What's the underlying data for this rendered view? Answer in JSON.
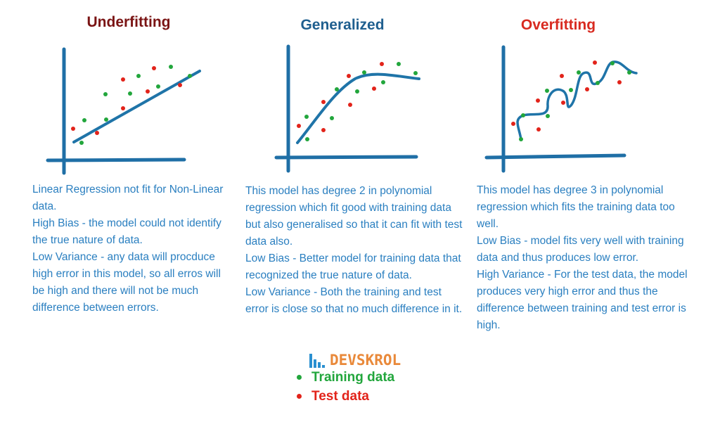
{
  "panels": [
    {
      "title": "Underfitting",
      "paragraphs": [
        "Linear Regression not fit for Non-Linear data.",
        "High Bias - the model could not identify the true nature of data.",
        "Low Variance - any data will procduce high error in this model, so all erros will be high and there will not be much difference between errors."
      ]
    },
    {
      "title": "Generalized",
      "paragraphs": [
        "This model has degree 2 in polynomial regression which fit good with training data but also generalised so that it can fit with test data also.",
        "Low Bias - Better model for training data that recognized the true nature of data.",
        "Low Variance - Both the training and test error is close so that no much difference in it."
      ]
    },
    {
      "title": "Overfitting",
      "paragraphs": [
        "This model has degree 3 in polynomial regression which fits the training data too well.",
        "Low Bias - model fits very well with training data and thus produces low error.",
        "High Variance - For the test data, the model produces very high error and thus the difference between training and test error is high."
      ]
    }
  ],
  "logo": {
    "text": "DEVSKROL"
  },
  "legend": {
    "training": "Training data",
    "test": "Test data"
  },
  "colors": {
    "axis": "#1f6fa6",
    "curve": "#1f74a8",
    "training_point": "#22a63c",
    "test_point": "#e2231a",
    "description": "#2a7fc0"
  }
}
